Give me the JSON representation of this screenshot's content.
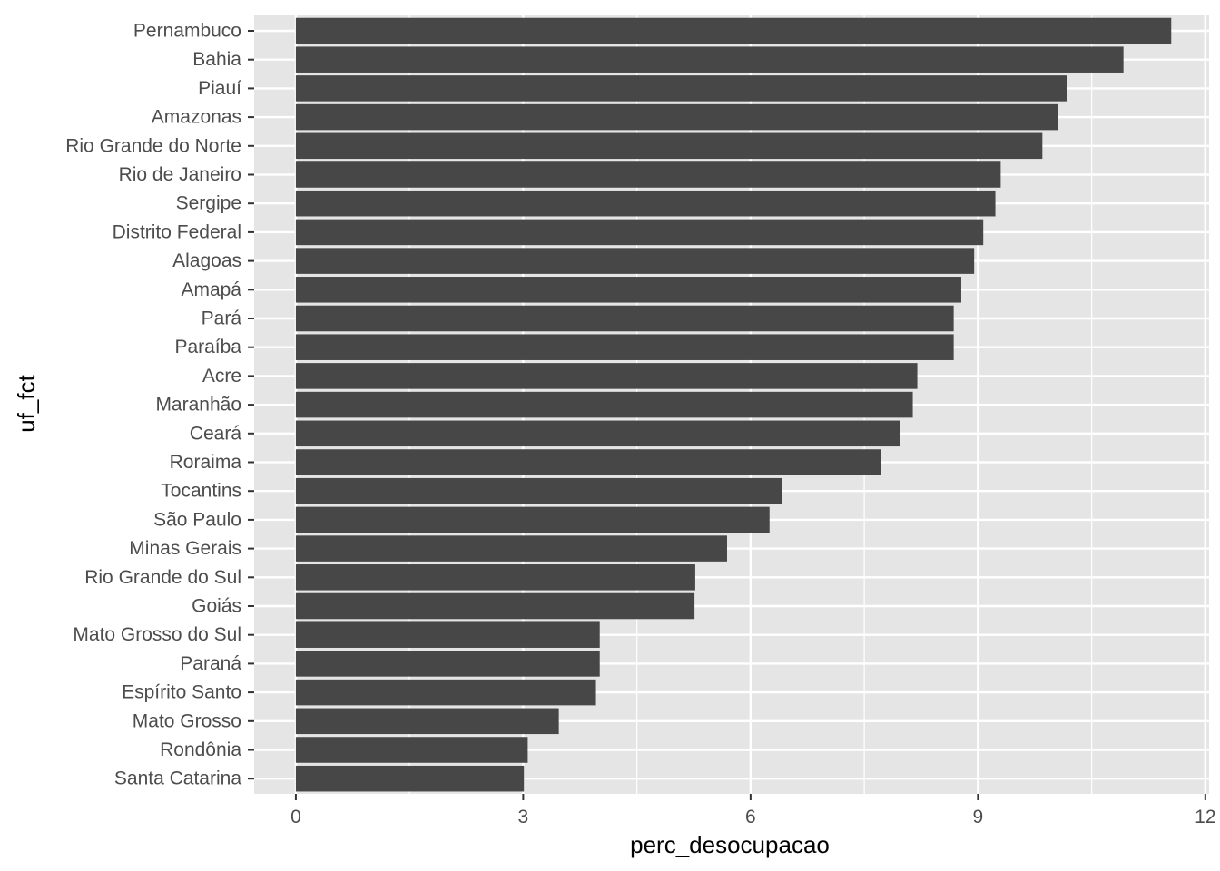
{
  "chart_data": {
    "type": "bar",
    "orientation": "horizontal",
    "xlabel": "perc_desocupacao",
    "ylabel": "uf_fct",
    "xlim": [
      -0.55,
      12.05
    ],
    "x_ticks": [
      0,
      3,
      6,
      9,
      12
    ],
    "grid": true,
    "legend": "none",
    "bar_color": "#474747",
    "panel_color": "#e5e5e5",
    "grid_color": "#ffffff",
    "categories": [
      "Pernambuco",
      "Bahia",
      "Piauí",
      "Amazonas",
      "Rio Grande do Norte",
      "Rio de Janeiro",
      "Sergipe",
      "Distrito Federal",
      "Alagoas",
      "Amapá",
      "Pará",
      "Paraíba",
      "Acre",
      "Maranhão",
      "Ceará",
      "Roraima",
      "Tocantins",
      "São Paulo",
      "Minas Gerais",
      "Rio Grande do Sul",
      "Goiás",
      "Mato Grosso do Sul",
      "Paraná",
      "Espírito Santo",
      "Mato Grosso",
      "Rondônia",
      "Santa Catarina"
    ],
    "values": [
      11.55,
      10.92,
      10.17,
      10.05,
      9.85,
      9.3,
      9.23,
      9.07,
      8.95,
      8.78,
      8.68,
      8.68,
      8.2,
      8.14,
      7.97,
      7.72,
      6.41,
      6.25,
      5.69,
      5.27,
      5.26,
      4.01,
      4.01,
      3.96,
      3.47,
      3.06,
      3.01
    ]
  }
}
